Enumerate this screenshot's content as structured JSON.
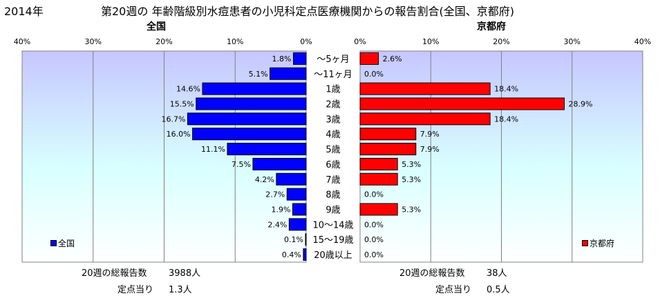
{
  "header": {
    "year": "2014年",
    "title": "第20週の  年齢階級別水痘患者の小児科定点医療機関からの報告割合(全国、京都府)"
  },
  "chart_data": {
    "type": "bar",
    "orientation": "horizontal",
    "categories": [
      "～5ヶ月",
      "～11ヶ月",
      "1歳",
      "2歳",
      "3歳",
      "4歳",
      "5歳",
      "6歳",
      "7歳",
      "8歳",
      "9歳",
      "10～14歳",
      "15～19歳",
      "20歳以上"
    ],
    "axis_ticks": [
      "40%",
      "30%",
      "20%",
      "10%",
      "0%"
    ],
    "axis_ticks_right": [
      "0%",
      "10%",
      "20%",
      "30%",
      "40%"
    ],
    "xlim": [
      0,
      40
    ],
    "panels": [
      {
        "title": "全国",
        "series_name": "全国",
        "color": "#0000ff",
        "values": [
          1.8,
          5.1,
          14.6,
          15.5,
          16.7,
          16.0,
          11.1,
          7.5,
          4.2,
          2.7,
          1.9,
          2.4,
          0.1,
          0.4
        ],
        "labels": [
          "1.8%",
          "5.1%",
          "14.6%",
          "15.5%",
          "16.7%",
          "16.0%",
          "11.1%",
          "7.5%",
          "4.2%",
          "2.7%",
          "1.9%",
          "2.4%",
          "0.1%",
          "0.4%"
        ],
        "total_label": "20週の総報告数",
        "total_value": "3988人",
        "per_label": "定点当り",
        "per_value": "1.3人"
      },
      {
        "title": "京都府",
        "series_name": "京都府",
        "color": "#ff0000",
        "values": [
          2.6,
          0.0,
          18.4,
          28.9,
          18.4,
          7.9,
          7.9,
          5.3,
          5.3,
          0.0,
          5.3,
          0.0,
          0.0,
          0.0
        ],
        "labels": [
          "2.6%",
          "0.0%",
          "18.4%",
          "28.9%",
          "18.4%",
          "7.9%",
          "7.9%",
          "5.3%",
          "5.3%",
          "0.0%",
          "5.3%",
          "0.0%",
          "0.0%",
          "0.0%"
        ],
        "total_label": "20週の総報告数",
        "total_value": "38人",
        "per_label": "定点当り",
        "per_value": "0.5人"
      }
    ],
    "grid": true,
    "legend_position": "bottom-left / bottom-right inside panels"
  }
}
